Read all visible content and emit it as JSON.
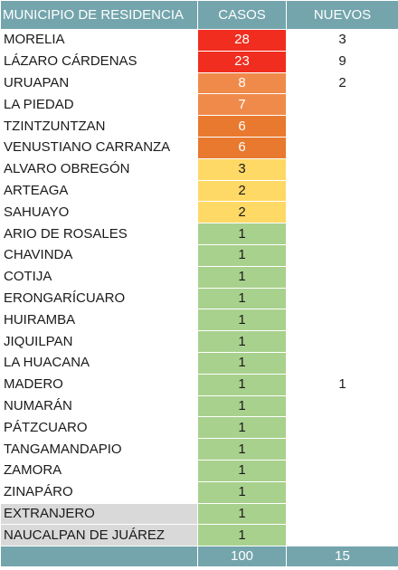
{
  "header": {
    "municipio": "MUNICIPIO DE RESIDENCIA",
    "casos": "CASOS",
    "nuevos": "NUEVOS"
  },
  "colors": {
    "header_bg": "#74a5ad",
    "red": "#f02d1f",
    "orange": "#f08a4b",
    "dark_orange": "#e8792f",
    "yellow": "#ffd966",
    "green": "#a9d18e",
    "grey": "#d9d9d9"
  },
  "rows": [
    {
      "municipio": "MORELIA",
      "casos": "28",
      "nuevos": "3",
      "level": "red",
      "muni_bg": "white"
    },
    {
      "municipio": "LÁZARO CÁRDENAS",
      "casos": "23",
      "nuevos": "9",
      "level": "red",
      "muni_bg": "white"
    },
    {
      "municipio": "URUAPAN",
      "casos": "8",
      "nuevos": "2",
      "level": "orange",
      "muni_bg": "white"
    },
    {
      "municipio": "LA PIEDAD",
      "casos": "7",
      "nuevos": "",
      "level": "orange",
      "muni_bg": "white"
    },
    {
      "municipio": "TZINTZUNTZAN",
      "casos": "6",
      "nuevos": "",
      "level": "dark_orange",
      "muni_bg": "white"
    },
    {
      "municipio": "VENUSTIANO CARRANZA",
      "casos": "6",
      "nuevos": "",
      "level": "dark_orange",
      "muni_bg": "white"
    },
    {
      "municipio": "ALVARO OBREGÓN",
      "casos": "3",
      "nuevos": "",
      "level": "yellow",
      "muni_bg": "white"
    },
    {
      "municipio": "ARTEAGA",
      "casos": "2",
      "nuevos": "",
      "level": "yellow",
      "muni_bg": "white"
    },
    {
      "municipio": "SAHUAYO",
      "casos": "2",
      "nuevos": "",
      "level": "yellow",
      "muni_bg": "white"
    },
    {
      "municipio": "ARIO DE ROSALES",
      "casos": "1",
      "nuevos": "",
      "level": "green",
      "muni_bg": "white"
    },
    {
      "municipio": "CHAVINDA",
      "casos": "1",
      "nuevos": "",
      "level": "green",
      "muni_bg": "white"
    },
    {
      "municipio": "COTIJA",
      "casos": "1",
      "nuevos": "",
      "level": "green",
      "muni_bg": "white"
    },
    {
      "municipio": "ERONGARÍCUARO",
      "casos": "1",
      "nuevos": "",
      "level": "green",
      "muni_bg": "white"
    },
    {
      "municipio": "HUIRAMBA",
      "casos": "1",
      "nuevos": "",
      "level": "green",
      "muni_bg": "white"
    },
    {
      "municipio": "JIQUILPAN",
      "casos": "1",
      "nuevos": "",
      "level": "green",
      "muni_bg": "white"
    },
    {
      "municipio": "LA HUACANA",
      "casos": "1",
      "nuevos": "",
      "level": "green",
      "muni_bg": "white"
    },
    {
      "municipio": "MADERO",
      "casos": "1",
      "nuevos": "1",
      "level": "green",
      "muni_bg": "white"
    },
    {
      "municipio": "NUMARÁN",
      "casos": "1",
      "nuevos": "",
      "level": "green",
      "muni_bg": "white"
    },
    {
      "municipio": "PÁTZCUARO",
      "casos": "1",
      "nuevos": "",
      "level": "green",
      "muni_bg": "white"
    },
    {
      "municipio": "TANGAMANDAPIO",
      "casos": "1",
      "nuevos": "",
      "level": "green",
      "muni_bg": "white"
    },
    {
      "municipio": "ZAMORA",
      "casos": "1",
      "nuevos": "",
      "level": "green",
      "muni_bg": "white"
    },
    {
      "municipio": "ZINAPÁRO",
      "casos": "1",
      "nuevos": "",
      "level": "green",
      "muni_bg": "white"
    },
    {
      "municipio": "EXTRANJERO",
      "casos": "1",
      "nuevos": "",
      "level": "green",
      "muni_bg": "grey"
    },
    {
      "municipio": "NAUCALPAN DE JUÁREZ",
      "casos": "1",
      "nuevos": "",
      "level": "green",
      "muni_bg": "grey"
    }
  ],
  "totals": {
    "label": "",
    "casos": "100",
    "nuevos": "15"
  }
}
